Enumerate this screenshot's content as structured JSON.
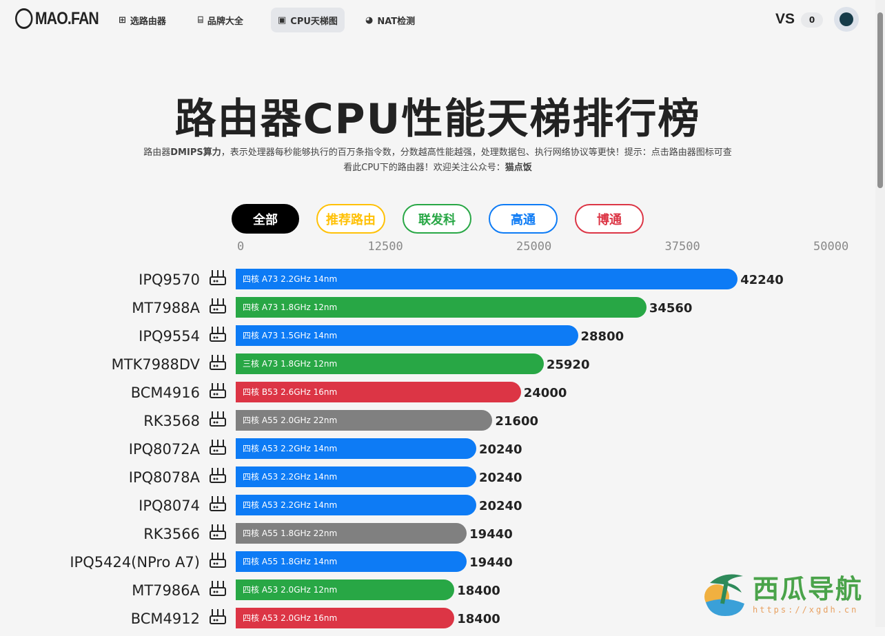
{
  "nav": {
    "logo": "MAO.FAN",
    "items": [
      {
        "label": "选路由器",
        "icon": "grid-icon"
      },
      {
        "label": "品牌大全",
        "icon": "router-icon"
      },
      {
        "label": "CPU天梯图",
        "icon": "chip-icon",
        "active": true
      },
      {
        "label": "NAT检测",
        "icon": "globe-icon"
      }
    ],
    "vs_label": "VS",
    "vs_count": "0"
  },
  "header": {
    "title": "路由器CPU性能天梯排行榜",
    "desc_bold1": "DMIPS算力",
    "desc_pre": "路由器",
    "desc_mid": "，表示处理器每秒能够执行的百万条指令数，分数越高性能越强，处理数据包、执行网络协议等更快！提示：点击路由器图标可查看此CPU下的路由器！欢迎关注公众号：",
    "desc_bold2": "猫点饭"
  },
  "filters": [
    {
      "label": "全部",
      "color": "#000000",
      "active": true
    },
    {
      "label": "推荐路由",
      "color": "#ffc107"
    },
    {
      "label": "联发科",
      "color": "#28a745"
    },
    {
      "label": "高通",
      "color": "#0d7bf5"
    },
    {
      "label": "博通",
      "color": "#dc3545"
    }
  ],
  "chart_data": {
    "type": "bar",
    "orientation": "horizontal",
    "xlim": [
      0,
      50000
    ],
    "ticks": [
      "0",
      "12500",
      "25000",
      "37500",
      "50000"
    ],
    "colors": {
      "qualcomm": "#0d7bf5",
      "mediatek": "#28a745",
      "broadcom": "#dc3545",
      "other": "#808080"
    },
    "rows": [
      {
        "name": "IPQ9570",
        "spec": "四核 A73 2.2GHz 14nm",
        "value": 42240,
        "brand": "qualcomm"
      },
      {
        "name": "MT7988A",
        "spec": "四核 A73 1.8GHz 12nm",
        "value": 34560,
        "brand": "mediatek"
      },
      {
        "name": "IPQ9554",
        "spec": "四核 A73 1.5GHz 14nm",
        "value": 28800,
        "brand": "qualcomm"
      },
      {
        "name": "MTK7988DV",
        "spec": "三核 A73 1.8GHz 12nm",
        "value": 25920,
        "brand": "mediatek"
      },
      {
        "name": "BCM4916",
        "spec": "四核 B53 2.6GHz 16nm",
        "value": 24000,
        "brand": "broadcom"
      },
      {
        "name": "RK3568",
        "spec": "四核 A55 2.0GHz 22nm",
        "value": 21600,
        "brand": "other"
      },
      {
        "name": "IPQ8072A",
        "spec": "四核 A53 2.2GHz 14nm",
        "value": 20240,
        "brand": "qualcomm"
      },
      {
        "name": "IPQ8078A",
        "spec": "四核 A53 2.2GHz 14nm",
        "value": 20240,
        "brand": "qualcomm"
      },
      {
        "name": "IPQ8074",
        "spec": "四核 A53 2.2GHz 14nm",
        "value": 20240,
        "brand": "qualcomm"
      },
      {
        "name": "RK3566",
        "spec": "四核 A55 1.8GHz 22nm",
        "value": 19440,
        "brand": "other"
      },
      {
        "name": "IPQ5424(NPro A7)",
        "spec": "四核 A55 1.8GHz 14nm",
        "value": 19440,
        "brand": "qualcomm"
      },
      {
        "name": "MT7986A",
        "spec": "四核 A53 2.0GHz 12nm",
        "value": 18400,
        "brand": "mediatek"
      },
      {
        "name": "BCM4912",
        "spec": "四核 A53 2.0GHz 16nm",
        "value": 18400,
        "brand": "broadcom"
      }
    ]
  },
  "watermark": {
    "title": "西瓜导航",
    "url": "https://xgdh.cn"
  }
}
